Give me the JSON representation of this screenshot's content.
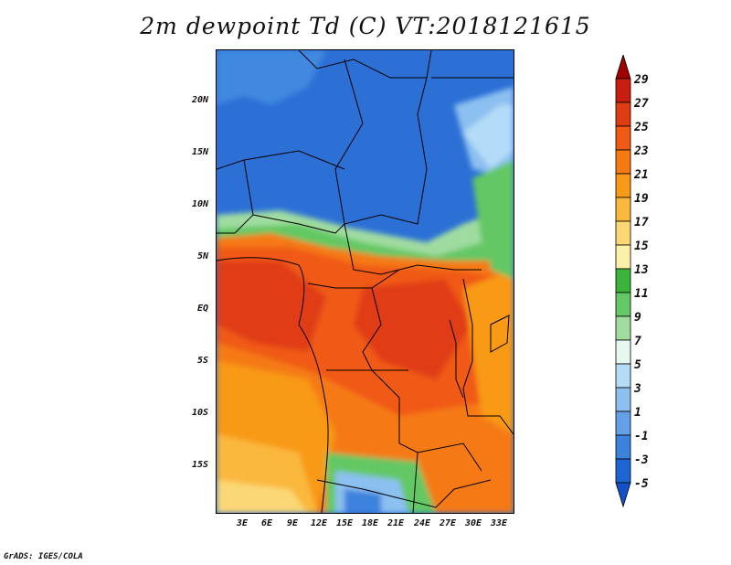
{
  "title": "2m dewpoint Td (C) VT:2018121615",
  "footer": "GrADS: IGES/COLA",
  "axes": {
    "lat_ticks": [
      "20N",
      "15N",
      "10N",
      "5N",
      "EQ",
      "5S",
      "10S",
      "15S"
    ],
    "lon_ticks": [
      "3E",
      "6E",
      "9E",
      "12E",
      "15E",
      "18E",
      "21E",
      "24E",
      "27E",
      "30E",
      "33E"
    ]
  },
  "colorbar": {
    "levels": [
      "29",
      "27",
      "25",
      "23",
      "21",
      "19",
      "17",
      "15",
      "13",
      "11",
      "9",
      "7",
      "5",
      "3",
      "1",
      "-1",
      "-3",
      "-5"
    ],
    "colors": [
      "#a00000",
      "#c81e10",
      "#e03c14",
      "#f05a14",
      "#f57a12",
      "#f89a18",
      "#fab83c",
      "#fcd774",
      "#fdf0a8",
      "#3cb43c",
      "#64c864",
      "#a0dca0",
      "#e6f8f0",
      "#b4dcf8",
      "#8cc0f0",
      "#64a0e6",
      "#3c82dc",
      "#1e64d2",
      "#1450c8"
    ]
  }
}
